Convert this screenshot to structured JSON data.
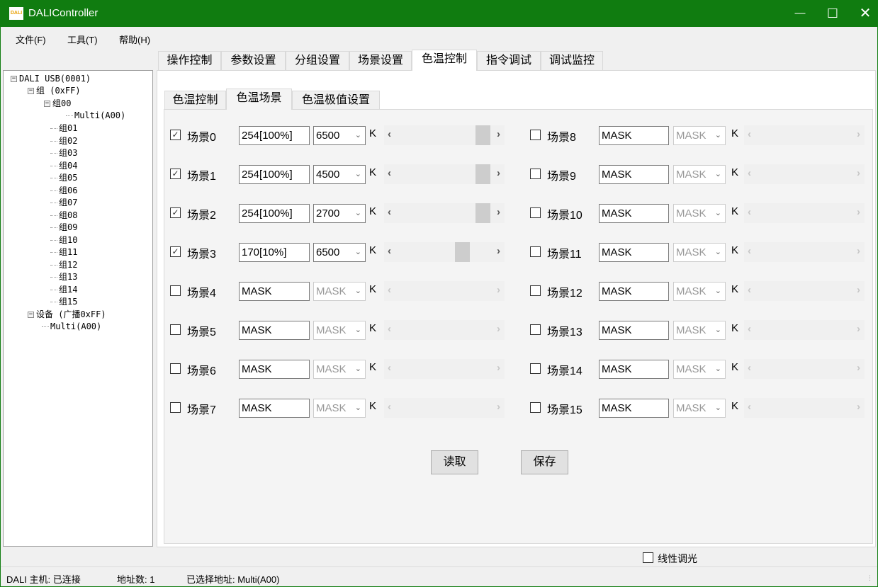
{
  "window": {
    "title": "DALIController",
    "icon_text": "DALI"
  },
  "menu": [
    "文件(F)",
    "工具(T)",
    "帮助(H)"
  ],
  "tree": {
    "root": "DALI USB(0001)",
    "group_root": "组 (0xFF)",
    "group00": "组00",
    "group00_child": "Multi(A00)",
    "groups": [
      "组01",
      "组02",
      "组03",
      "组04",
      "组05",
      "组06",
      "组07",
      "组08",
      "组09",
      "组10",
      "组11",
      "组12",
      "组13",
      "组14",
      "组15"
    ],
    "device_root": "设备 (广播0xFF)",
    "device_child": "Multi(A00)"
  },
  "main_tabs": [
    "操作控制",
    "参数设置",
    "分组设置",
    "场景设置",
    "色温控制",
    "指令调试",
    "调试监控"
  ],
  "main_tab_selected": "色温控制",
  "sub_tabs": [
    "色温控制",
    "色温场景",
    "色温极值设置"
  ],
  "sub_tab_selected": "色温场景",
  "unit": "K",
  "scenes": [
    {
      "label": "场景0",
      "checked": true,
      "level": "254[100%]",
      "cct": "6500",
      "slider": 0.97
    },
    {
      "label": "场景1",
      "checked": true,
      "level": "254[100%]",
      "cct": "4500",
      "slider": 0.97
    },
    {
      "label": "场景2",
      "checked": true,
      "level": "254[100%]",
      "cct": "2700",
      "slider": 0.97
    },
    {
      "label": "场景3",
      "checked": true,
      "level": "170[10%]",
      "cct": "6500",
      "slider": 0.72
    },
    {
      "label": "场景4",
      "checked": false,
      "level": "MASK",
      "cct": "MASK"
    },
    {
      "label": "场景5",
      "checked": false,
      "level": "MASK",
      "cct": "MASK"
    },
    {
      "label": "场景6",
      "checked": false,
      "level": "MASK",
      "cct": "MASK"
    },
    {
      "label": "场景7",
      "checked": false,
      "level": "MASK",
      "cct": "MASK"
    },
    {
      "label": "场景8",
      "checked": false,
      "level": "MASK",
      "cct": "MASK"
    },
    {
      "label": "场景9",
      "checked": false,
      "level": "MASK",
      "cct": "MASK"
    },
    {
      "label": "场景10",
      "checked": false,
      "level": "MASK",
      "cct": "MASK"
    },
    {
      "label": "场景11",
      "checked": false,
      "level": "MASK",
      "cct": "MASK"
    },
    {
      "label": "场景12",
      "checked": false,
      "level": "MASK",
      "cct": "MASK"
    },
    {
      "label": "场景13",
      "checked": false,
      "level": "MASK",
      "cct": "MASK"
    },
    {
      "label": "场景14",
      "checked": false,
      "level": "MASK",
      "cct": "MASK"
    },
    {
      "label": "场景15",
      "checked": false,
      "level": "MASK",
      "cct": "MASK"
    }
  ],
  "buttons": {
    "read": "读取",
    "save": "保存"
  },
  "linear_dimming": {
    "label": "线性调光",
    "checked": false
  },
  "status": {
    "host": "DALI 主机: 已连接",
    "address_count": "地址数: 1",
    "selected": "已选择地址: Multi(A00)"
  },
  "colors": {
    "titlebar": "#107c10"
  }
}
